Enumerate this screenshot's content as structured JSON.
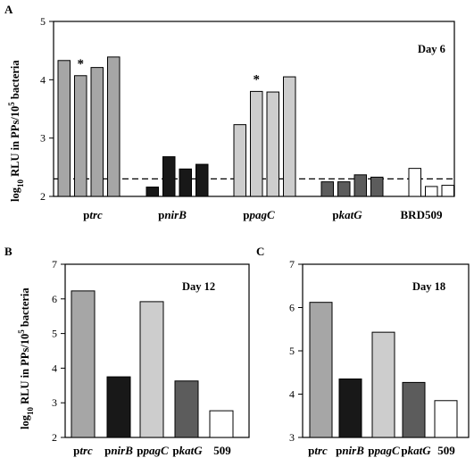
{
  "colors": {
    "ptrc": "#a6a6a6",
    "pnirB": "#181818",
    "ppagC": "#cdcdcd",
    "pkatG": "#5c5c5c",
    "brd509": "#ffffff",
    "outline": "#000000"
  },
  "ylabel": {
    "prefix": "log",
    "sub": "10",
    "middle": " RLU in PPs/10",
    "sup": "5",
    "suffix": " bacteria"
  },
  "chart_data": [
    {
      "panel": "A",
      "type": "bar",
      "day_label": "Day 6",
      "ylim": [
        2,
        5
      ],
      "yticks": [
        "2",
        "3",
        "4",
        "5"
      ],
      "threshold_line": 2.3,
      "groups": [
        {
          "key": "ptrc",
          "label_plain": "p",
          "label_italic": "trc",
          "values": [
            4.33,
            4.07,
            4.21,
            4.39
          ],
          "star_index": 1
        },
        {
          "key": "pnirB",
          "label_plain": "p",
          "label_italic": "nirB",
          "values": [
            2.16,
            2.68,
            2.47,
            2.55
          ]
        },
        {
          "key": "ppagC",
          "label_plain": "p",
          "label_italic": "pagC",
          "values": [
            3.23,
            3.8,
            3.79,
            4.05
          ],
          "star_index": 1
        },
        {
          "key": "pkatG",
          "label_plain": "p",
          "label_italic": "katG",
          "values": [
            2.25,
            2.25,
            2.37,
            2.33
          ]
        },
        {
          "key": "brd509",
          "label_plain": "BRD509",
          "label_italic": "",
          "values": [
            2.48,
            2.17,
            2.19
          ]
        }
      ]
    },
    {
      "panel": "B",
      "type": "bar",
      "day_label": "Day 12",
      "ylim": [
        2,
        7
      ],
      "yticks": [
        "2",
        "3",
        "4",
        "5",
        "6",
        "7"
      ],
      "groups": [
        {
          "key": "ptrc",
          "label_plain": "p",
          "label_italic": "trc",
          "values": [
            6.23
          ]
        },
        {
          "key": "pnirB",
          "label_plain": "p",
          "label_italic": "nirB",
          "values": [
            3.75
          ]
        },
        {
          "key": "ppagC",
          "label_plain": "p",
          "label_italic": "pagC",
          "values": [
            5.92
          ]
        },
        {
          "key": "pkatG",
          "label_plain": "p",
          "label_italic": "katG",
          "values": [
            3.63
          ]
        },
        {
          "key": "brd509",
          "label_plain": "509",
          "label_italic": "",
          "values": [
            2.77
          ]
        }
      ]
    },
    {
      "panel": "C",
      "type": "bar",
      "day_label": "Day 18",
      "ylim": [
        3,
        7
      ],
      "yticks": [
        "3",
        "4",
        "5",
        "6",
        "7"
      ],
      "groups": [
        {
          "key": "ptrc",
          "label_plain": "p",
          "label_italic": "trc",
          "values": [
            6.12
          ]
        },
        {
          "key": "pnirB",
          "label_plain": "p",
          "label_italic": "nirB",
          "values": [
            4.35
          ]
        },
        {
          "key": "ppagC",
          "label_plain": "p",
          "label_italic": "pagC",
          "values": [
            5.43
          ]
        },
        {
          "key": "pkatG",
          "label_plain": "p",
          "label_italic": "katG",
          "values": [
            4.27
          ]
        },
        {
          "key": "brd509",
          "label_plain": "509",
          "label_italic": "",
          "values": [
            3.85
          ]
        }
      ]
    }
  ]
}
